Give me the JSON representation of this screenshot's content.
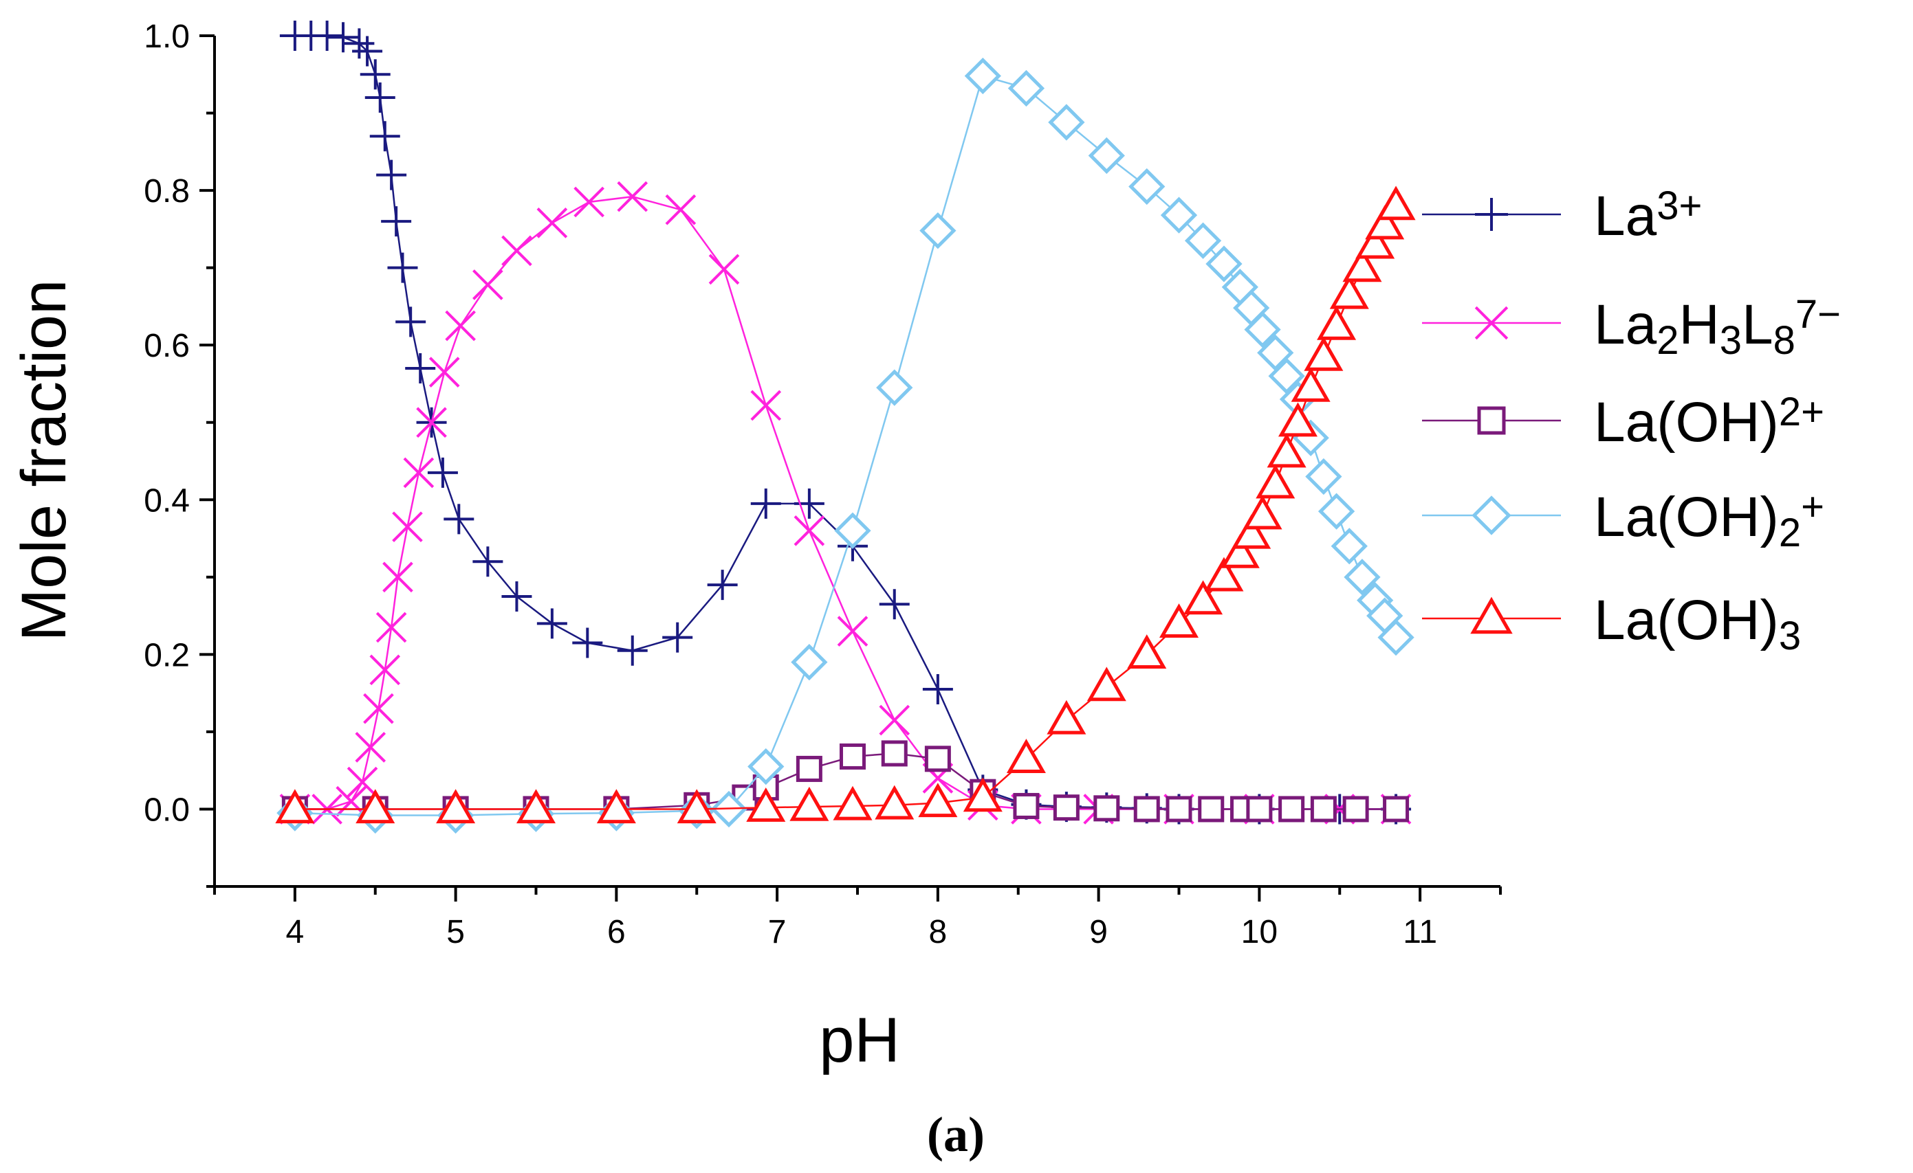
{
  "chart_data": {
    "type": "line",
    "title": "",
    "xlabel": "pH",
    "ylabel": "Mole fraction",
    "xlim": [
      3.5,
      11.5
    ],
    "ylim": [
      -0.1,
      1.0
    ],
    "x_ticks": [
      "4",
      "5",
      "6",
      "7",
      "8",
      "9",
      "10",
      "11"
    ],
    "y_ticks": [
      "0.0",
      "0.2",
      "0.4",
      "0.6",
      "0.8",
      "1.0"
    ],
    "caption": "(a)",
    "grid": false,
    "legend_position": "right",
    "series": [
      {
        "name": "La3+",
        "label_base": "La",
        "label_parts": [
          {
            "text": "3+",
            "sup": true
          }
        ],
        "color": "#1a1a80",
        "marker": "plus",
        "points": [
          [
            4.0,
            1.0
          ],
          [
            4.1,
            1.0
          ],
          [
            4.2,
            1.0
          ],
          [
            4.3,
            0.998
          ],
          [
            4.4,
            0.99
          ],
          [
            4.45,
            0.98
          ],
          [
            4.5,
            0.95
          ],
          [
            4.53,
            0.92
          ],
          [
            4.56,
            0.87
          ],
          [
            4.6,
            0.82
          ],
          [
            4.63,
            0.76
          ],
          [
            4.67,
            0.7
          ],
          [
            4.72,
            0.63
          ],
          [
            4.78,
            0.57
          ],
          [
            4.85,
            0.5
          ],
          [
            4.92,
            0.435
          ],
          [
            5.02,
            0.375
          ],
          [
            5.2,
            0.32
          ],
          [
            5.38,
            0.275
          ],
          [
            5.6,
            0.24
          ],
          [
            5.82,
            0.215
          ],
          [
            6.1,
            0.205
          ],
          [
            6.38,
            0.222
          ],
          [
            6.66,
            0.29
          ],
          [
            6.93,
            0.395
          ],
          [
            7.2,
            0.395
          ],
          [
            7.47,
            0.34
          ],
          [
            7.73,
            0.265
          ],
          [
            8.0,
            0.155
          ],
          [
            8.28,
            0.025
          ],
          [
            8.55,
            0.006
          ],
          [
            8.8,
            0.003
          ],
          [
            9.05,
            0.002
          ],
          [
            9.3,
            0.001
          ],
          [
            9.5,
            0.0
          ],
          [
            10.0,
            0.0
          ],
          [
            10.5,
            0.0
          ],
          [
            10.85,
            0.0
          ]
        ]
      },
      {
        "name": "La2H3L8 7-",
        "label_base": "La",
        "label_parts": [
          {
            "text": "2",
            "sub": true
          },
          {
            "text": "H"
          },
          {
            "text": "3",
            "sub": true
          },
          {
            "text": "L"
          },
          {
            "text": "8",
            "sub": true
          },
          {
            "text": "7−",
            "sup": true
          }
        ],
        "color": "#ff22dd",
        "marker": "x",
        "points": [
          [
            4.0,
            0.0
          ],
          [
            4.2,
            0.0
          ],
          [
            4.35,
            0.01
          ],
          [
            4.42,
            0.035
          ],
          [
            4.47,
            0.08
          ],
          [
            4.52,
            0.13
          ],
          [
            4.56,
            0.18
          ],
          [
            4.6,
            0.235
          ],
          [
            4.64,
            0.3
          ],
          [
            4.7,
            0.365
          ],
          [
            4.77,
            0.435
          ],
          [
            4.85,
            0.5
          ],
          [
            4.93,
            0.565
          ],
          [
            5.03,
            0.625
          ],
          [
            5.2,
            0.678
          ],
          [
            5.38,
            0.722
          ],
          [
            5.6,
            0.758
          ],
          [
            5.83,
            0.785
          ],
          [
            6.1,
            0.792
          ],
          [
            6.4,
            0.775
          ],
          [
            6.67,
            0.698
          ],
          [
            6.93,
            0.522
          ],
          [
            7.2,
            0.36
          ],
          [
            7.47,
            0.23
          ],
          [
            7.73,
            0.115
          ],
          [
            8.0,
            0.04
          ],
          [
            8.28,
            0.005
          ],
          [
            8.55,
            0.0
          ],
          [
            9.0,
            0.0
          ],
          [
            9.5,
            0.0
          ],
          [
            10.0,
            0.0
          ],
          [
            10.5,
            0.0
          ],
          [
            10.85,
            0.0
          ]
        ]
      },
      {
        "name": "La(OH)2+",
        "label_base": "La(OH)",
        "label_parts": [
          {
            "text": "2+",
            "sup": true
          }
        ],
        "color": "#7a1a7a",
        "marker": "square",
        "points": [
          [
            4.0,
            0.0
          ],
          [
            4.5,
            0.0
          ],
          [
            5.0,
            0.0
          ],
          [
            5.5,
            0.0
          ],
          [
            6.0,
            0.0
          ],
          [
            6.5,
            0.005
          ],
          [
            6.8,
            0.015
          ],
          [
            6.93,
            0.028
          ],
          [
            7.2,
            0.052
          ],
          [
            7.47,
            0.068
          ],
          [
            7.73,
            0.072
          ],
          [
            8.0,
            0.065
          ],
          [
            8.28,
            0.022
          ],
          [
            8.55,
            0.004
          ],
          [
            8.8,
            0.002
          ],
          [
            9.05,
            0.001
          ],
          [
            9.3,
            0.0
          ],
          [
            9.5,
            0.0
          ],
          [
            9.7,
            0.0
          ],
          [
            9.9,
            0.0
          ],
          [
            10.0,
            0.0
          ],
          [
            10.2,
            0.0
          ],
          [
            10.4,
            0.0
          ],
          [
            10.6,
            0.0
          ],
          [
            10.85,
            0.0
          ]
        ]
      },
      {
        "name": "La(OH)2 +",
        "label_base": "La(OH)",
        "label_parts": [
          {
            "text": "2",
            "sub": true
          },
          {
            "text": "+",
            "sup": true
          }
        ],
        "color": "#80c8f0",
        "marker": "diamond",
        "points": [
          [
            4.0,
            -0.005
          ],
          [
            4.5,
            -0.008
          ],
          [
            5.0,
            -0.008
          ],
          [
            5.5,
            -0.006
          ],
          [
            6.0,
            -0.005
          ],
          [
            6.5,
            -0.002
          ],
          [
            6.7,
            0.0
          ],
          [
            6.93,
            0.055
          ],
          [
            7.2,
            0.19
          ],
          [
            7.47,
            0.36
          ],
          [
            7.73,
            0.545
          ],
          [
            8.0,
            0.748
          ],
          [
            8.28,
            0.948
          ],
          [
            8.55,
            0.932
          ],
          [
            8.8,
            0.888
          ],
          [
            9.05,
            0.845
          ],
          [
            9.3,
            0.805
          ],
          [
            9.5,
            0.768
          ],
          [
            9.65,
            0.735
          ],
          [
            9.78,
            0.705
          ],
          [
            9.88,
            0.675
          ],
          [
            9.95,
            0.648
          ],
          [
            10.02,
            0.62
          ],
          [
            10.1,
            0.59
          ],
          [
            10.17,
            0.56
          ],
          [
            10.24,
            0.53
          ],
          [
            10.32,
            0.48
          ],
          [
            10.4,
            0.43
          ],
          [
            10.48,
            0.385
          ],
          [
            10.56,
            0.34
          ],
          [
            10.64,
            0.3
          ],
          [
            10.72,
            0.27
          ],
          [
            10.78,
            0.25
          ],
          [
            10.85,
            0.222
          ]
        ]
      },
      {
        "name": "La(OH)3",
        "label_base": "La(OH)",
        "label_parts": [
          {
            "text": "3",
            "sub": true
          }
        ],
        "color": "#ff1010",
        "marker": "triangle",
        "points": [
          [
            4.0,
            0.0
          ],
          [
            4.5,
            0.0
          ],
          [
            5.0,
            0.0
          ],
          [
            5.5,
            0.0
          ],
          [
            6.0,
            0.0
          ],
          [
            6.5,
            0.0
          ],
          [
            6.93,
            0.002
          ],
          [
            7.2,
            0.003
          ],
          [
            7.47,
            0.004
          ],
          [
            7.73,
            0.005
          ],
          [
            8.0,
            0.008
          ],
          [
            8.28,
            0.015
          ],
          [
            8.55,
            0.065
          ],
          [
            8.8,
            0.115
          ],
          [
            9.05,
            0.158
          ],
          [
            9.3,
            0.2
          ],
          [
            9.5,
            0.24
          ],
          [
            9.65,
            0.27
          ],
          [
            9.78,
            0.3
          ],
          [
            9.88,
            0.33
          ],
          [
            9.95,
            0.355
          ],
          [
            10.02,
            0.38
          ],
          [
            10.1,
            0.42
          ],
          [
            10.17,
            0.46
          ],
          [
            10.24,
            0.5
          ],
          [
            10.32,
            0.545
          ],
          [
            10.4,
            0.585
          ],
          [
            10.48,
            0.625
          ],
          [
            10.56,
            0.665
          ],
          [
            10.64,
            0.7
          ],
          [
            10.72,
            0.73
          ],
          [
            10.78,
            0.755
          ],
          [
            10.85,
            0.78
          ]
        ]
      }
    ]
  }
}
